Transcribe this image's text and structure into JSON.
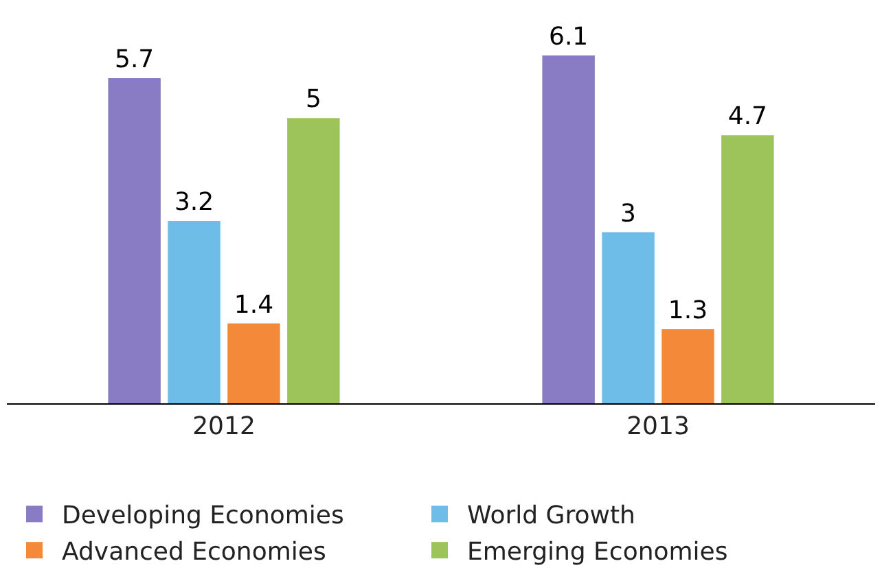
{
  "chart_data": {
    "type": "bar",
    "categories": [
      "2012",
      "2013"
    ],
    "series": [
      {
        "name": "Developing Economies",
        "color": "#8a7cc4",
        "values": [
          5.7,
          6.1
        ]
      },
      {
        "name": "World Growth",
        "color": "#6ebde9",
        "values": [
          3.2,
          3
        ]
      },
      {
        "name": "Advanced Economies",
        "color": "#f5893a",
        "values": [
          1.4,
          1.3
        ]
      },
      {
        "name": "Emerging Economies",
        "color": "#9cc45a",
        "values": [
          5,
          4.7
        ]
      }
    ],
    "data_labels": true,
    "legend": "bottom",
    "tick_labels": "x"
  }
}
